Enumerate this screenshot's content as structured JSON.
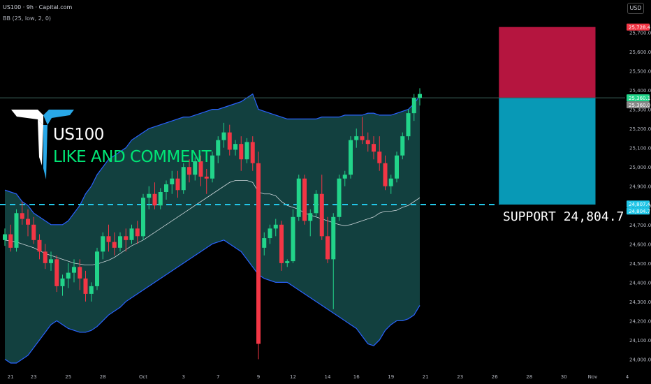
{
  "header": {
    "symbol_line": "US100 · 9h · Capital.com",
    "indicator_line": "BB (25, low, 2, 0)",
    "currency": "USD"
  },
  "overlay": {
    "title": "US100",
    "subtitle": "LIKE AND COMMENT",
    "support_label": "SUPPORT",
    "support_value": "24,804.7"
  },
  "colors": {
    "up": "#22d48a",
    "down": "#f23645",
    "band_fill": "#12403f",
    "band_line": "#2962ff",
    "basis_line": "#cfd8dc",
    "support_line": "#22c7e8",
    "stop_zone": "#b5153f",
    "target_zone": "#0899b6",
    "logo_white": "#ffffff",
    "logo_blue": "#29a8e8"
  },
  "chart_data": {
    "type": "candlestick",
    "ylim": [
      23980,
      25760
    ],
    "y_ticks": [
      24000,
      24100,
      24200,
      24300,
      24400,
      24500,
      24600,
      24700,
      24800,
      24900,
      25000,
      25100,
      25200,
      25300,
      25400,
      25500,
      25600,
      25700
    ],
    "y_tick_labels": [
      "24,000.0",
      "24,100.0",
      "24,200.0",
      "24,300.0",
      "24,400.0",
      "24,500.0",
      "24,600.0",
      "24,700.0",
      "24,800.0",
      "24,900.0",
      "25,000.0",
      "25,100.0",
      "25,200.0",
      "25,300.0",
      "25,400.0",
      "25,500.0",
      "25,600.0",
      "25,700.0"
    ],
    "x_ticks": [
      {
        "label": "21",
        "bar": 1
      },
      {
        "label": "23",
        "bar": 5
      },
      {
        "label": "25",
        "bar": 11
      },
      {
        "label": "28",
        "bar": 17
      },
      {
        "label": "Oct",
        "bar": 24
      },
      {
        "label": "3",
        "bar": 31
      },
      {
        "label": "7",
        "bar": 37
      },
      {
        "label": "9",
        "bar": 44
      },
      {
        "label": "12",
        "bar": 50
      },
      {
        "label": "14",
        "bar": 56
      },
      {
        "label": "16",
        "bar": 61
      },
      {
        "label": "19",
        "bar": 67
      },
      {
        "label": "21",
        "bar": 73
      },
      {
        "label": "23",
        "bar": 79
      },
      {
        "label": "26",
        "bar": 85
      },
      {
        "label": "28",
        "bar": 91
      },
      {
        "label": "30",
        "bar": 97
      },
      {
        "label": "Nov",
        "bar": 102
      },
      {
        "label": "4",
        "bar": 108
      }
    ],
    "price_labels": [
      {
        "value": 25728.4,
        "text": "25,728.4",
        "color": "#f23645"
      },
      {
        "value": 25360.1,
        "text": "25,360.1",
        "color": "#22d48a"
      },
      {
        "value": 25360.0,
        "text": "25,360.0",
        "color": "#888888"
      },
      {
        "value": 24807.4,
        "text": "24,807.4",
        "color": "#22c7e8"
      },
      {
        "value": 24804.7,
        "text": "24,804.7",
        "color": "#22c7e8"
      }
    ],
    "support": 24804.7,
    "position": {
      "stop": 25728.4,
      "entry": 25360.0,
      "target": 24804.7,
      "start_bar": 85,
      "end_bar": 102
    },
    "candles": [
      [
        24620,
        24680,
        24590,
        24650
      ],
      [
        24650,
        24700,
        24560,
        24580
      ],
      [
        24580,
        24780,
        24560,
        24760
      ],
      [
        24760,
        24820,
        24700,
        24730
      ],
      [
        24730,
        24780,
        24640,
        24700
      ],
      [
        24700,
        24740,
        24600,
        24620
      ],
      [
        24620,
        24650,
        24520,
        24560
      ],
      [
        24560,
        24600,
        24470,
        24500
      ],
      [
        24500,
        24560,
        24460,
        24520
      ],
      [
        24520,
        24540,
        24350,
        24380
      ],
      [
        24380,
        24440,
        24330,
        24420
      ],
      [
        24420,
        24500,
        24370,
        24450
      ],
      [
        24450,
        24520,
        24400,
        24480
      ],
      [
        24480,
        24520,
        24360,
        24420
      ],
      [
        24420,
        24460,
        24300,
        24340
      ],
      [
        24340,
        24400,
        24300,
        24380
      ],
      [
        24380,
        24580,
        24360,
        24560
      ],
      [
        24560,
        24660,
        24520,
        24640
      ],
      [
        24640,
        24700,
        24560,
        24610
      ],
      [
        24610,
        24660,
        24540,
        24580
      ],
      [
        24580,
        24660,
        24560,
        24640
      ],
      [
        24640,
        24680,
        24560,
        24620
      ],
      [
        24620,
        24700,
        24600,
        24680
      ],
      [
        24680,
        24720,
        24600,
        24640
      ],
      [
        24640,
        24860,
        24620,
        24840
      ],
      [
        24840,
        24900,
        24780,
        24860
      ],
      [
        24860,
        24920,
        24780,
        24800
      ],
      [
        24800,
        24890,
        24780,
        24870
      ],
      [
        24870,
        24930,
        24830,
        24910
      ],
      [
        24910,
        24980,
        24860,
        24940
      ],
      [
        24940,
        24980,
        24840,
        24880
      ],
      [
        24880,
        25020,
        24860,
        25000
      ],
      [
        25000,
        25040,
        24920,
        24960
      ],
      [
        24960,
        25050,
        24930,
        25030
      ],
      [
        25030,
        25060,
        24900,
        24950
      ],
      [
        24950,
        24990,
        24860,
        24940
      ],
      [
        24940,
        25080,
        24920,
        25060
      ],
      [
        25060,
        25160,
        25020,
        25140
      ],
      [
        25140,
        25230,
        25100,
        25180
      ],
      [
        25180,
        25220,
        25060,
        25090
      ],
      [
        25090,
        25140,
        25060,
        25120
      ],
      [
        25120,
        25160,
        24980,
        25040
      ],
      [
        25040,
        25150,
        25020,
        25130
      ],
      [
        25130,
        25160,
        24980,
        25020
      ],
      [
        25020,
        25080,
        24000,
        24080
      ],
      [
        24580,
        24660,
        24540,
        24630
      ],
      [
        24630,
        24700,
        24600,
        24680
      ],
      [
        24680,
        24730,
        24640,
        24700
      ],
      [
        24700,
        24720,
        24460,
        24500
      ],
      [
        24500,
        24520,
        24480,
        24510
      ],
      [
        24510,
        24780,
        24500,
        24740
      ],
      [
        24740,
        24960,
        24720,
        24940
      ],
      [
        24940,
        24960,
        24700,
        24720
      ],
      [
        24720,
        24780,
        24640,
        24760
      ],
      [
        24760,
        24880,
        24740,
        24860
      ],
      [
        24860,
        24960,
        24620,
        24640
      ],
      [
        24640,
        24740,
        24500,
        24520
      ],
      [
        24520,
        24760,
        24260,
        24740
      ],
      [
        24740,
        24960,
        24720,
        24940
      ],
      [
        24940,
        24980,
        24900,
        24960
      ],
      [
        24960,
        25160,
        24940,
        25140
      ],
      [
        25140,
        25200,
        25100,
        25160
      ],
      [
        25160,
        25260,
        25120,
        25140
      ],
      [
        25140,
        25180,
        25080,
        25120
      ],
      [
        25120,
        25160,
        25040,
        25080
      ],
      [
        25080,
        25160,
        24980,
        25020
      ],
      [
        25020,
        25060,
        24880,
        24900
      ],
      [
        24900,
        24960,
        24860,
        24940
      ],
      [
        24940,
        25080,
        24920,
        25060
      ],
      [
        25060,
        25180,
        25040,
        25160
      ],
      [
        25160,
        25300,
        25140,
        25280
      ],
      [
        25280,
        25380,
        25240,
        25360
      ],
      [
        25360,
        25410,
        25320,
        25380
      ]
    ],
    "bands": {
      "upper": [
        24880,
        24870,
        24860,
        24820,
        24800,
        24760,
        24740,
        24720,
        24700,
        24700,
        24700,
        24720,
        24760,
        24800,
        24860,
        24900,
        24960,
        25000,
        25040,
        25060,
        25080,
        25100,
        25140,
        25160,
        25180,
        25200,
        25210,
        25220,
        25230,
        25240,
        25250,
        25260,
        25260,
        25270,
        25280,
        25290,
        25300,
        25300,
        25310,
        25320,
        25330,
        25340,
        25360,
        25380,
        25300,
        25290,
        25280,
        25270,
        25260,
        25250,
        25250,
        25250,
        25250,
        25250,
        25250,
        25260,
        25260,
        25260,
        25260,
        25270,
        25270,
        25270,
        25270,
        25280,
        25280,
        25270,
        25270,
        25270,
        25280,
        25290,
        25300,
        25330,
        25370
      ],
      "basis": [
        24620,
        24615,
        24610,
        24600,
        24590,
        24580,
        24565,
        24550,
        24540,
        24530,
        24520,
        24510,
        24500,
        24495,
        24490,
        24490,
        24495,
        24505,
        24515,
        24530,
        24550,
        24570,
        24590,
        24605,
        24620,
        24640,
        24660,
        24680,
        24700,
        24720,
        24740,
        24760,
        24780,
        24800,
        24820,
        24840,
        24860,
        24880,
        24900,
        24920,
        24930,
        24930,
        24930,
        24920,
        24870,
        24860,
        24860,
        24850,
        24820,
        24800,
        24790,
        24780,
        24760,
        24750,
        24740,
        24730,
        24720,
        24710,
        24700,
        24695,
        24700,
        24710,
        24720,
        24730,
        24740,
        24760,
        24770,
        24770,
        24775,
        24790,
        24800,
        24820,
        24840
      ],
      "lower": [
        24000,
        23980,
        23980,
        24000,
        24020,
        24060,
        24100,
        24140,
        24180,
        24200,
        24180,
        24160,
        24150,
        24140,
        24140,
        24150,
        24170,
        24200,
        24230,
        24250,
        24270,
        24300,
        24320,
        24340,
        24360,
        24380,
        24400,
        24420,
        24440,
        24460,
        24480,
        24500,
        24520,
        24540,
        24560,
        24580,
        24600,
        24610,
        24620,
        24600,
        24580,
        24560,
        24520,
        24480,
        24440,
        24420,
        24410,
        24400,
        24400,
        24400,
        24380,
        24360,
        24340,
        24320,
        24300,
        24280,
        24260,
        24240,
        24220,
        24200,
        24180,
        24160,
        24120,
        24080,
        24070,
        24100,
        24150,
        24180,
        24200,
        24200,
        24210,
        24230,
        24280
      ]
    }
  }
}
